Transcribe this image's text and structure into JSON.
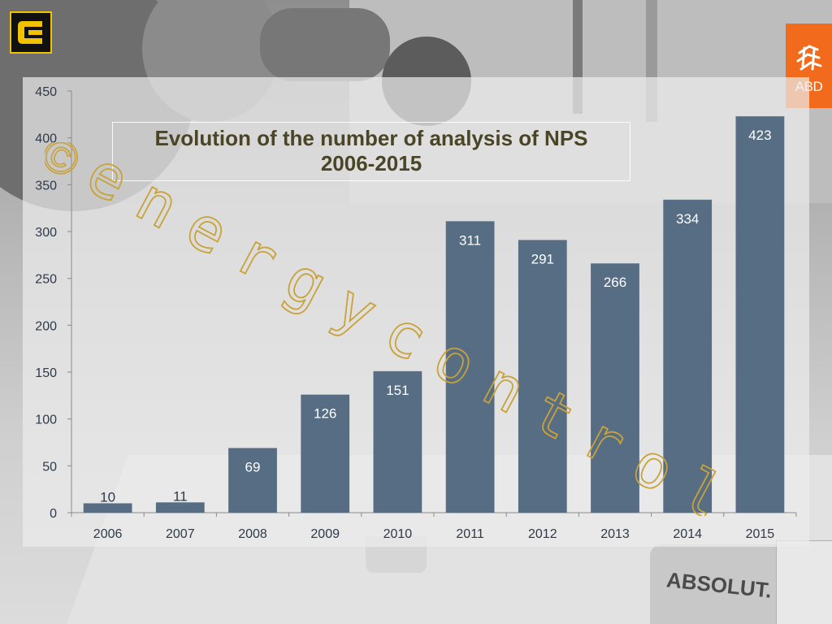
{
  "logos": {
    "left_icon": "cg-logo-icon",
    "right_icon": "abd-logo-icon",
    "right_text": "ABD"
  },
  "watermark": {
    "symbol": "©",
    "text": "energycontrol"
  },
  "background": {
    "bottle_label": "ABSOLUT."
  },
  "colors": {
    "bar": "#566d84",
    "title": "#4a4526",
    "axis": "#8a8a8a",
    "logo_orange": "#f26a1b",
    "logo_yellow": "#f2c200"
  },
  "chart_data": {
    "type": "bar",
    "title": "Evolution of the number of analysis of NPS 2006-2015",
    "title_lines": [
      "Evolution of the number of analysis of NPS",
      "2006-2015"
    ],
    "categories": [
      "2006",
      "2007",
      "2008",
      "2009",
      "2010",
      "2011",
      "2012",
      "2013",
      "2014",
      "2015"
    ],
    "values": [
      10,
      11,
      69,
      126,
      151,
      311,
      291,
      266,
      334,
      423
    ],
    "value_labels": [
      "10",
      "11",
      "69",
      "126",
      "151",
      "311",
      "291",
      "266",
      "334",
      "423"
    ],
    "ylim": [
      0,
      450
    ],
    "yticks": [
      0,
      50,
      100,
      150,
      200,
      250,
      300,
      350,
      400,
      450
    ],
    "ytick_labels": [
      "0",
      "50",
      "100",
      "150",
      "200",
      "250",
      "300",
      "350",
      "400",
      "450"
    ],
    "xlabel": "",
    "ylabel": "",
    "grid": false,
    "legend": "none"
  }
}
